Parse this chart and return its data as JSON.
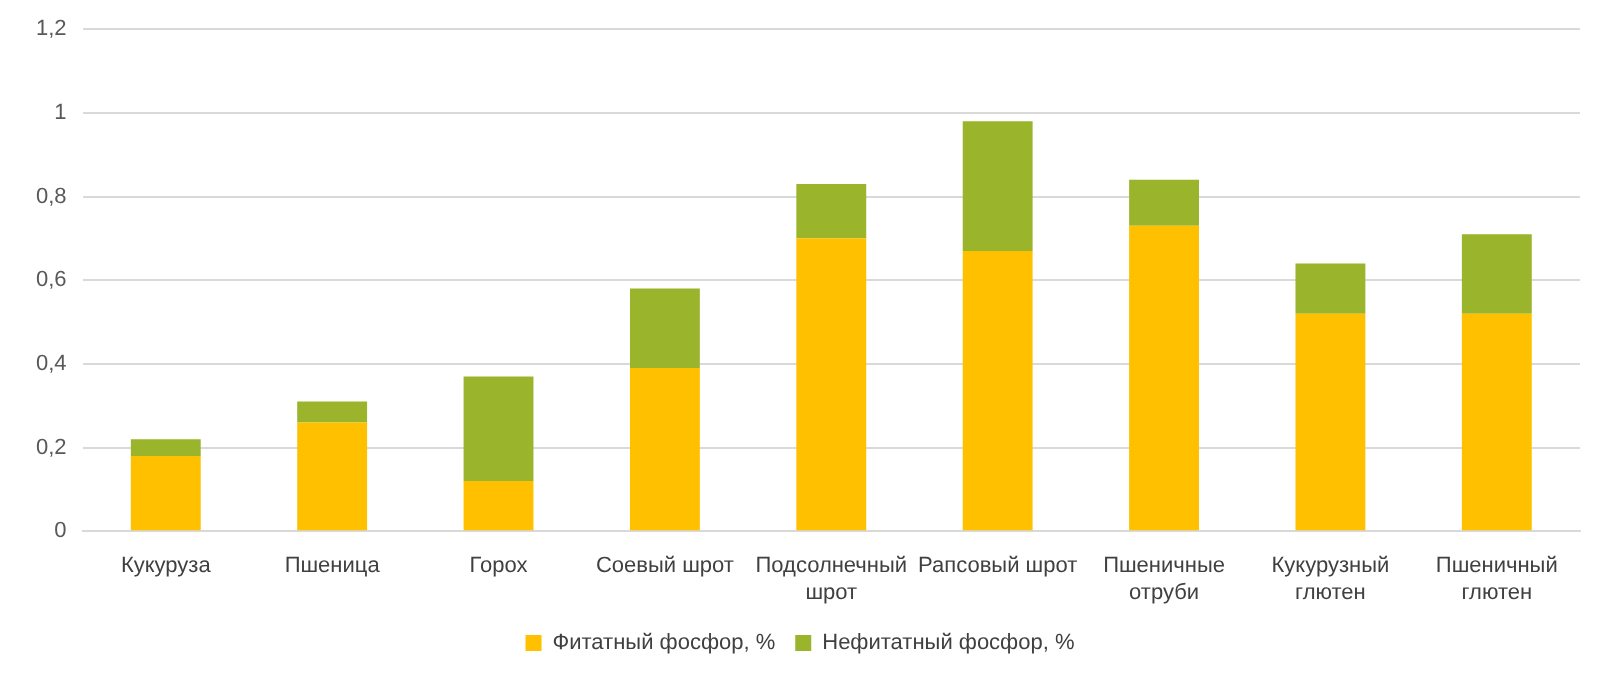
{
  "chart_data": {
    "type": "bar",
    "stacked": true,
    "categories": [
      "Кукуруза",
      "Пшеница",
      "Горох",
      "Соевый шрот",
      "Подсолнечный шрот",
      "Рапсовый шрот",
      "Пшеничные отруби",
      "Кукурузный глютен",
      "Пшеничный глютен"
    ],
    "series": [
      {
        "name": "Фитатный фосфор, %",
        "color": "#ffc000",
        "values": [
          0.18,
          0.26,
          0.12,
          0.39,
          0.7,
          0.67,
          0.73,
          0.52,
          0.52
        ]
      },
      {
        "name": "Нефитатный фосфор, %",
        "color": "#9ab52c",
        "values": [
          0.04,
          0.05,
          0.25,
          0.19,
          0.13,
          0.31,
          0.11,
          0.12,
          0.19
        ]
      }
    ],
    "ylim": [
      0,
      1.2
    ],
    "yticks": [
      0,
      {
        "value": 0.2,
        "label": "0,2"
      },
      {
        "value": 0.4,
        "label": "0,4"
      },
      {
        "value": 0.6,
        "label": "0,6"
      },
      {
        "value": 0.8,
        "label": "0,8"
      },
      1,
      {
        "value": 1.2,
        "label": "1,2"
      }
    ],
    "grid": "y",
    "legend": "bottom"
  }
}
